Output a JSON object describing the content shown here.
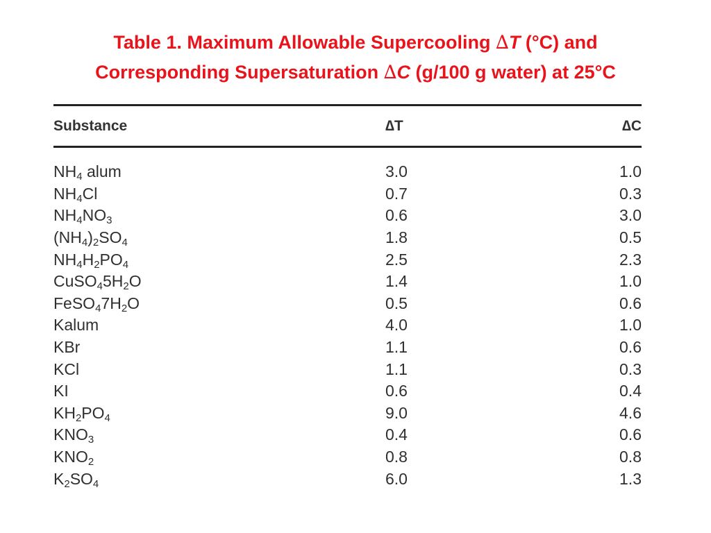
{
  "title": {
    "line1_a": "Table 1. Maximum Allowable Supercooling ",
    "delta": "∆",
    "T": "T",
    "line1_b": " (°C) and",
    "line2_a": "Corresponding Supersaturation ",
    "C": "C",
    "line2_b": " (g/100 g water) at 25°C"
  },
  "table": {
    "headers": {
      "substance": "Substance",
      "dT": "∆T",
      "dC": "∆C"
    },
    "rows": [
      {
        "substance": "NH<sub>4</sub>  alum",
        "dT": "3.0",
        "dC": "1.0"
      },
      {
        "substance": "NH<sub>4</sub>Cl",
        "dT": "0.7",
        "dC": "0.3"
      },
      {
        "substance": "NH<sub>4</sub>NO<sub>3</sub>",
        "dT": "0.6",
        "dC": "3.0"
      },
      {
        "substance": "(NH<sub>4</sub>)<sub>2</sub>SO<sub>4</sub>",
        "dT": "1.8",
        "dC": "0.5"
      },
      {
        "substance": "NH<sub>4</sub>H<sub>2</sub>PO<sub>4</sub>",
        "dT": "2.5",
        "dC": "2.3"
      },
      {
        "substance": "CuSO<sub>4</sub>5H<sub>2</sub>O",
        "dT": "1.4",
        "dC": "1.0"
      },
      {
        "substance": "FeSO<sub>4</sub>7H<sub>2</sub>O",
        "dT": "0.5",
        "dC": "0.6"
      },
      {
        "substance": "Kalum",
        "dT": "4.0",
        "dC": "1.0"
      },
      {
        "substance": "KBr",
        "dT": "1.1",
        "dC": "0.6"
      },
      {
        "substance": "KCl",
        "dT": "1.1",
        "dC": "0.3"
      },
      {
        "substance": "KI",
        "dT": "0.6",
        "dC": "0.4"
      },
      {
        "substance": "KH<sub>2</sub>PO<sub>4</sub>",
        "dT": "9.0",
        "dC": "4.6"
      },
      {
        "substance": "KNO<sub>3</sub>",
        "dT": "0.4",
        "dC": "0.6"
      },
      {
        "substance": "KNO<sub>2</sub>",
        "dT": "0.8",
        "dC": "0.8"
      },
      {
        "substance": "K<sub>2</sub>SO<sub>4</sub>",
        "dT": "6.0",
        "dC": "1.3"
      }
    ]
  }
}
